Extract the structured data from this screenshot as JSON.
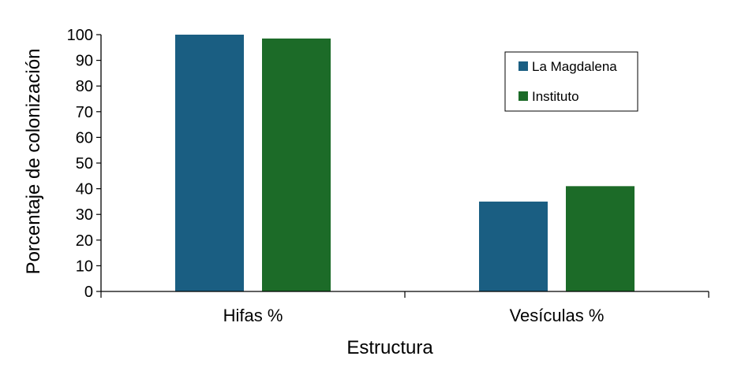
{
  "chart_data": {
    "type": "bar",
    "categories": [
      "Hifas %",
      "Vesículas %"
    ],
    "series": [
      {
        "name": "La Magdalena",
        "values": [
          100,
          35
        ],
        "color": "#1a5e82"
      },
      {
        "name": "Instituto",
        "values": [
          98.5,
          41
        ],
        "color": "#1c6b28"
      }
    ],
    "xlabel": "Estructura",
    "ylabel": "Porcentaje de colonización",
    "ylim": [
      0,
      100
    ],
    "yticks": [
      0,
      10,
      20,
      30,
      40,
      50,
      60,
      70,
      80,
      90,
      100
    ],
    "grid": false,
    "legend": "top-right"
  }
}
